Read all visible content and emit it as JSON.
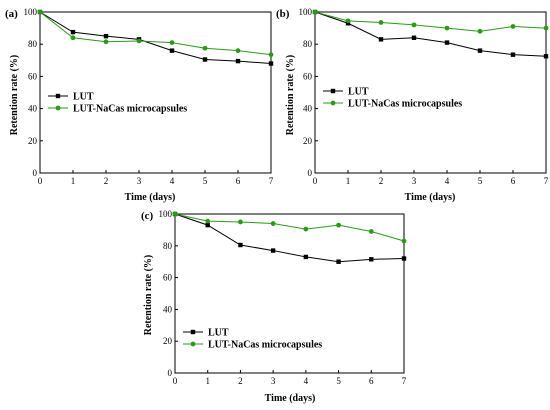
{
  "chart_data": [
    {
      "type": "line",
      "panel_label": "(a)",
      "xlabel": "Time (days)",
      "ylabel": "Retention rate (%)",
      "x": [
        0,
        1,
        2,
        3,
        4,
        5,
        6,
        7
      ],
      "xlim": [
        0,
        7
      ],
      "ylim": [
        0,
        100
      ],
      "xticks": [
        "0",
        "1",
        "2",
        "3",
        "4",
        "5",
        "6",
        "7"
      ],
      "yticks": [
        "0",
        "20",
        "40",
        "60",
        "80",
        "100"
      ],
      "legend_position": "middle-left",
      "grid": false,
      "series": [
        {
          "name": "LUT",
          "color": "#000000",
          "marker": "square",
          "values": [
            100,
            87.5,
            85,
            83,
            76,
            70.5,
            69.5,
            68
          ]
        },
        {
          "name": "LUT-NaCas microcapsules",
          "color": "#2a9a18",
          "marker": "circle",
          "values": [
            100,
            84,
            81.5,
            82,
            81,
            77.5,
            76,
            73.5
          ]
        }
      ]
    },
    {
      "type": "line",
      "panel_label": "(b)",
      "xlabel": "Time (days)",
      "ylabel": "Retention rate (%)",
      "x": [
        0,
        1,
        2,
        3,
        4,
        5,
        6,
        7
      ],
      "xlim": [
        0,
        7
      ],
      "ylim": [
        0,
        100
      ],
      "xticks": [
        "0",
        "1",
        "2",
        "3",
        "4",
        "5",
        "6",
        "7"
      ],
      "yticks": [
        "0",
        "20",
        "40",
        "60",
        "80",
        "100"
      ],
      "legend_position": "middle-left",
      "grid": false,
      "series": [
        {
          "name": "LUT",
          "color": "#000000",
          "marker": "square",
          "values": [
            100,
            93,
            83,
            84,
            81,
            76,
            73.5,
            72.5
          ]
        },
        {
          "name": "LUT-NaCas microcapsules",
          "color": "#2a9a18",
          "marker": "circle",
          "values": [
            100,
            94.5,
            93.5,
            92,
            90,
            88,
            91,
            90
          ]
        }
      ]
    },
    {
      "type": "line",
      "panel_label": "(c)",
      "xlabel": "Time (days)",
      "ylabel": "Retention rate (%)",
      "x": [
        0,
        1,
        2,
        3,
        4,
        5,
        6,
        7
      ],
      "xlim": [
        0,
        7
      ],
      "ylim": [
        0,
        100
      ],
      "xticks": [
        "0",
        "1",
        "2",
        "3",
        "4",
        "5",
        "6",
        "7"
      ],
      "yticks": [
        "0",
        "20",
        "40",
        "60",
        "80",
        "100"
      ],
      "legend_position": "lower-left",
      "grid": false,
      "series": [
        {
          "name": "LUT",
          "color": "#000000",
          "marker": "square",
          "values": [
            100,
            93,
            80.5,
            77,
            73,
            70,
            71.5,
            72
          ]
        },
        {
          "name": "LUT-NaCas microcapsules",
          "color": "#2a9a18",
          "marker": "circle",
          "values": [
            100,
            95.5,
            95,
            94,
            90.5,
            93,
            89,
            83
          ]
        }
      ]
    }
  ]
}
